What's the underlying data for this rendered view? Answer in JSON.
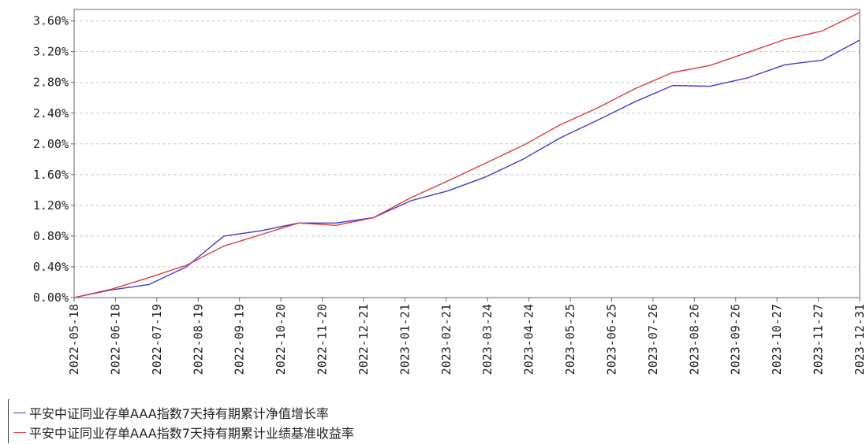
{
  "colors": {
    "series_a": "#3a3ad6",
    "series_b": "#e03a3a",
    "grid": "#c8c8c8",
    "axis": "#666666"
  },
  "chart_data": {
    "type": "line",
    "title": "",
    "xlabel": "",
    "ylabel": "",
    "ylim": [
      0.0,
      3.75
    ],
    "y_ticks": [
      0.0,
      0.4,
      0.8,
      1.2,
      1.6,
      2.0,
      2.4,
      2.8,
      3.2,
      3.6
    ],
    "y_tick_labels": [
      "0.00%",
      "0.40%",
      "0.80%",
      "1.20%",
      "1.60%",
      "2.00%",
      "2.40%",
      "2.80%",
      "3.20%",
      "3.60%"
    ],
    "x_tick_labels": [
      "2022-05-18",
      "2022-06-18",
      "2022-07-19",
      "2022-08-19",
      "2022-09-19",
      "2022-10-20",
      "2022-11-20",
      "2022-12-21",
      "2023-01-21",
      "2023-02-21",
      "2023-03-24",
      "2023-04-24",
      "2023-05-25",
      "2023-06-25",
      "2023-07-26",
      "2023-08-26",
      "2023-09-26",
      "2023-10-27",
      "2023-11-27",
      "2023-12-31"
    ],
    "grid": "horizontal dashed",
    "legend_position": "bottom",
    "series": [
      {
        "name": "平安中证同业存单AAA指数7天持有期累计净值增长率",
        "values": [
          0.0,
          0.1,
          0.17,
          0.4,
          0.8,
          0.87,
          0.97,
          0.97,
          1.04,
          1.26,
          1.39,
          1.57,
          1.8,
          2.08,
          2.31,
          2.55,
          2.76,
          2.75,
          2.86,
          3.03,
          3.09,
          3.35
        ]
      },
      {
        "name": "平安中证同业存单AAA指数7天持有期累计业绩基准收益率",
        "values": [
          0.0,
          0.11,
          0.26,
          0.42,
          0.67,
          0.82,
          0.97,
          0.94,
          1.04,
          1.3,
          1.52,
          1.75,
          1.98,
          2.25,
          2.47,
          2.72,
          2.93,
          3.02,
          3.19,
          3.36,
          3.47,
          3.71
        ]
      }
    ]
  }
}
